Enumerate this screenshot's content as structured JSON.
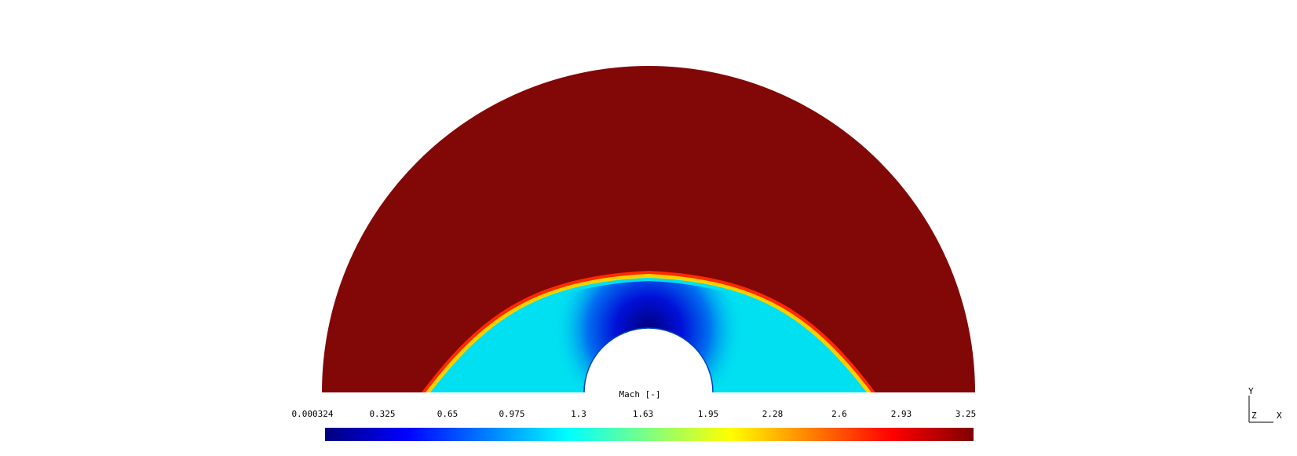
{
  "viewer": {
    "scalar_bar": {
      "title": "Mach [-]",
      "tick_labels": [
        "0.000324",
        "0.325",
        "0.65",
        "0.975",
        "1.3",
        "1.63",
        "1.95",
        "2.28",
        "2.6",
        "2.93",
        "3.25"
      ],
      "range": [
        0.000324,
        3.25
      ],
      "colormap": [
        "#00007f",
        "#0000ff",
        "#007fff",
        "#00ffff",
        "#7fff7f",
        "#ffff00",
        "#ff7f00",
        "#ff0000",
        "#7f0000"
      ]
    },
    "field_colors": {
      "freestream": "#820808",
      "shock_outer": "#ff2a00",
      "shock_inner": "#ffd000",
      "stagnation": "#0000b0",
      "subsonic": "#00e0f0"
    },
    "axes": {
      "y": "Y",
      "z": "Z",
      "x": "X"
    }
  }
}
